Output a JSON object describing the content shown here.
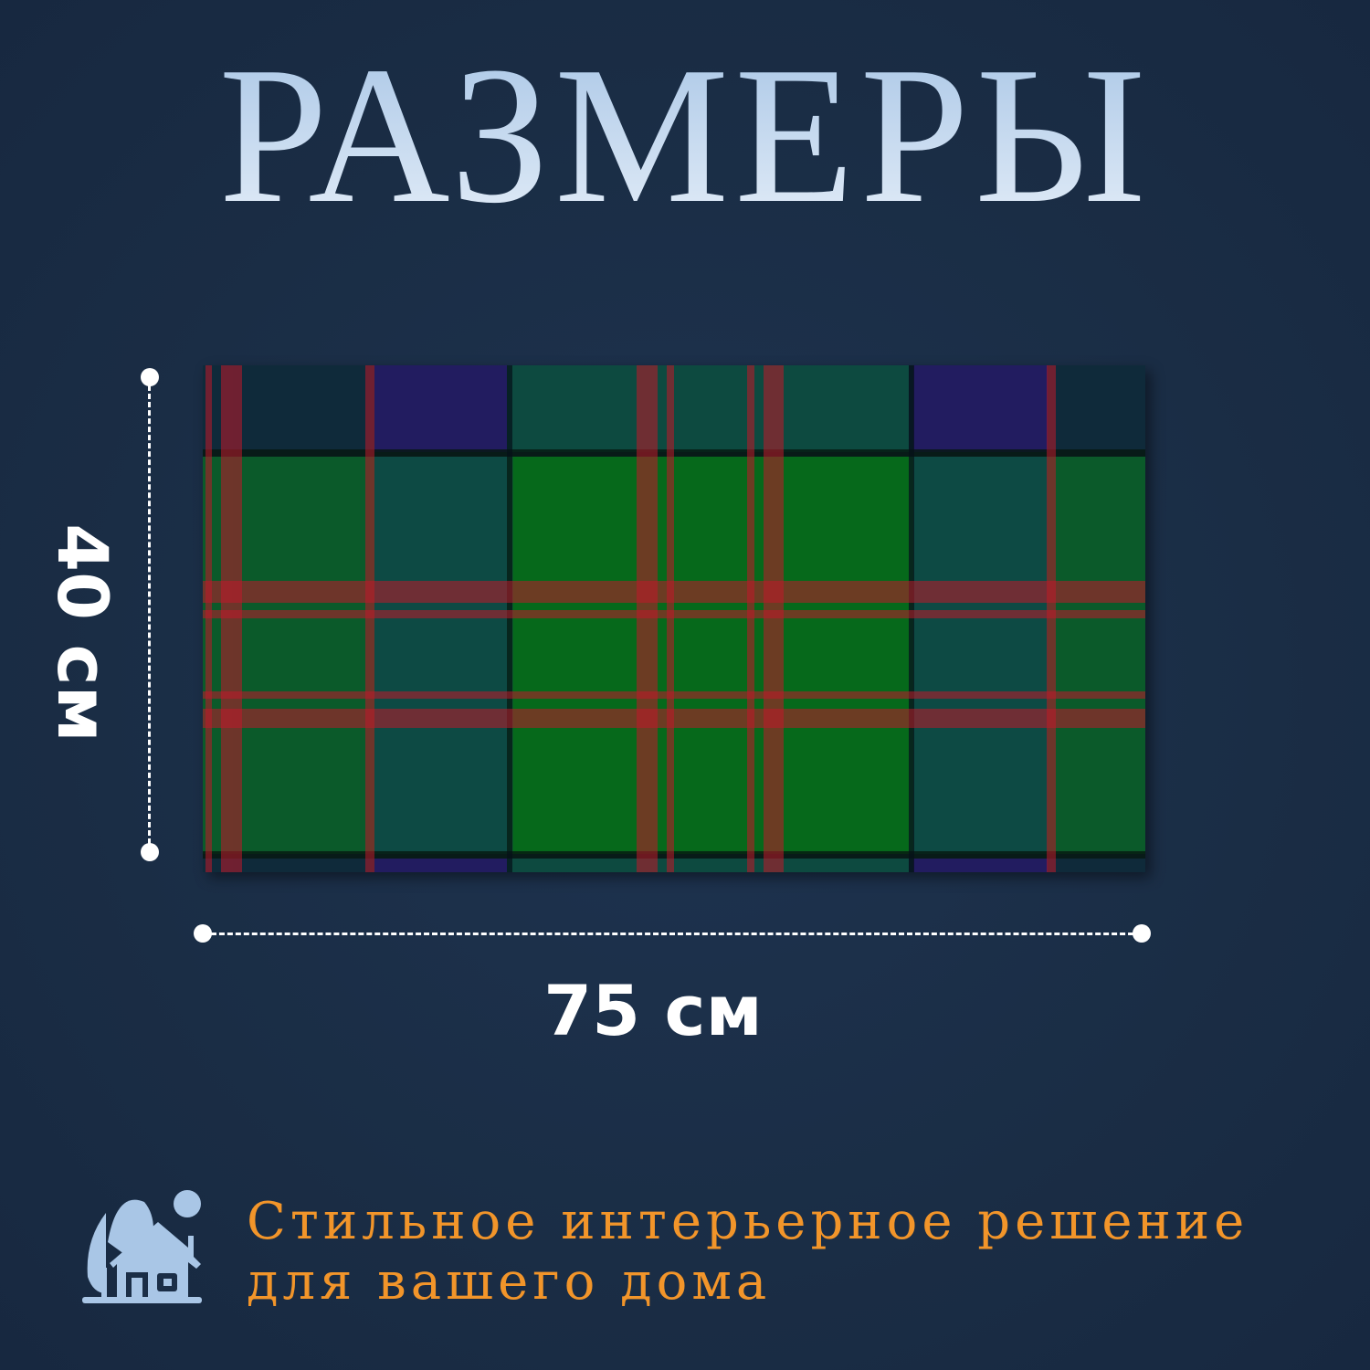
{
  "title": "РАЗМЕРЫ",
  "dimensions": {
    "height_label": "40 см",
    "width_label": "75 см"
  },
  "tagline": {
    "line1": "Стильное интерьерное решение",
    "line2": "для вашего дома"
  },
  "colors": {
    "background": "#1a2d45",
    "title": "#c3d7ee",
    "accent": "#f2952a",
    "icon": "#a9c6e6"
  },
  "icons": [
    "house-with-trees-icon"
  ]
}
